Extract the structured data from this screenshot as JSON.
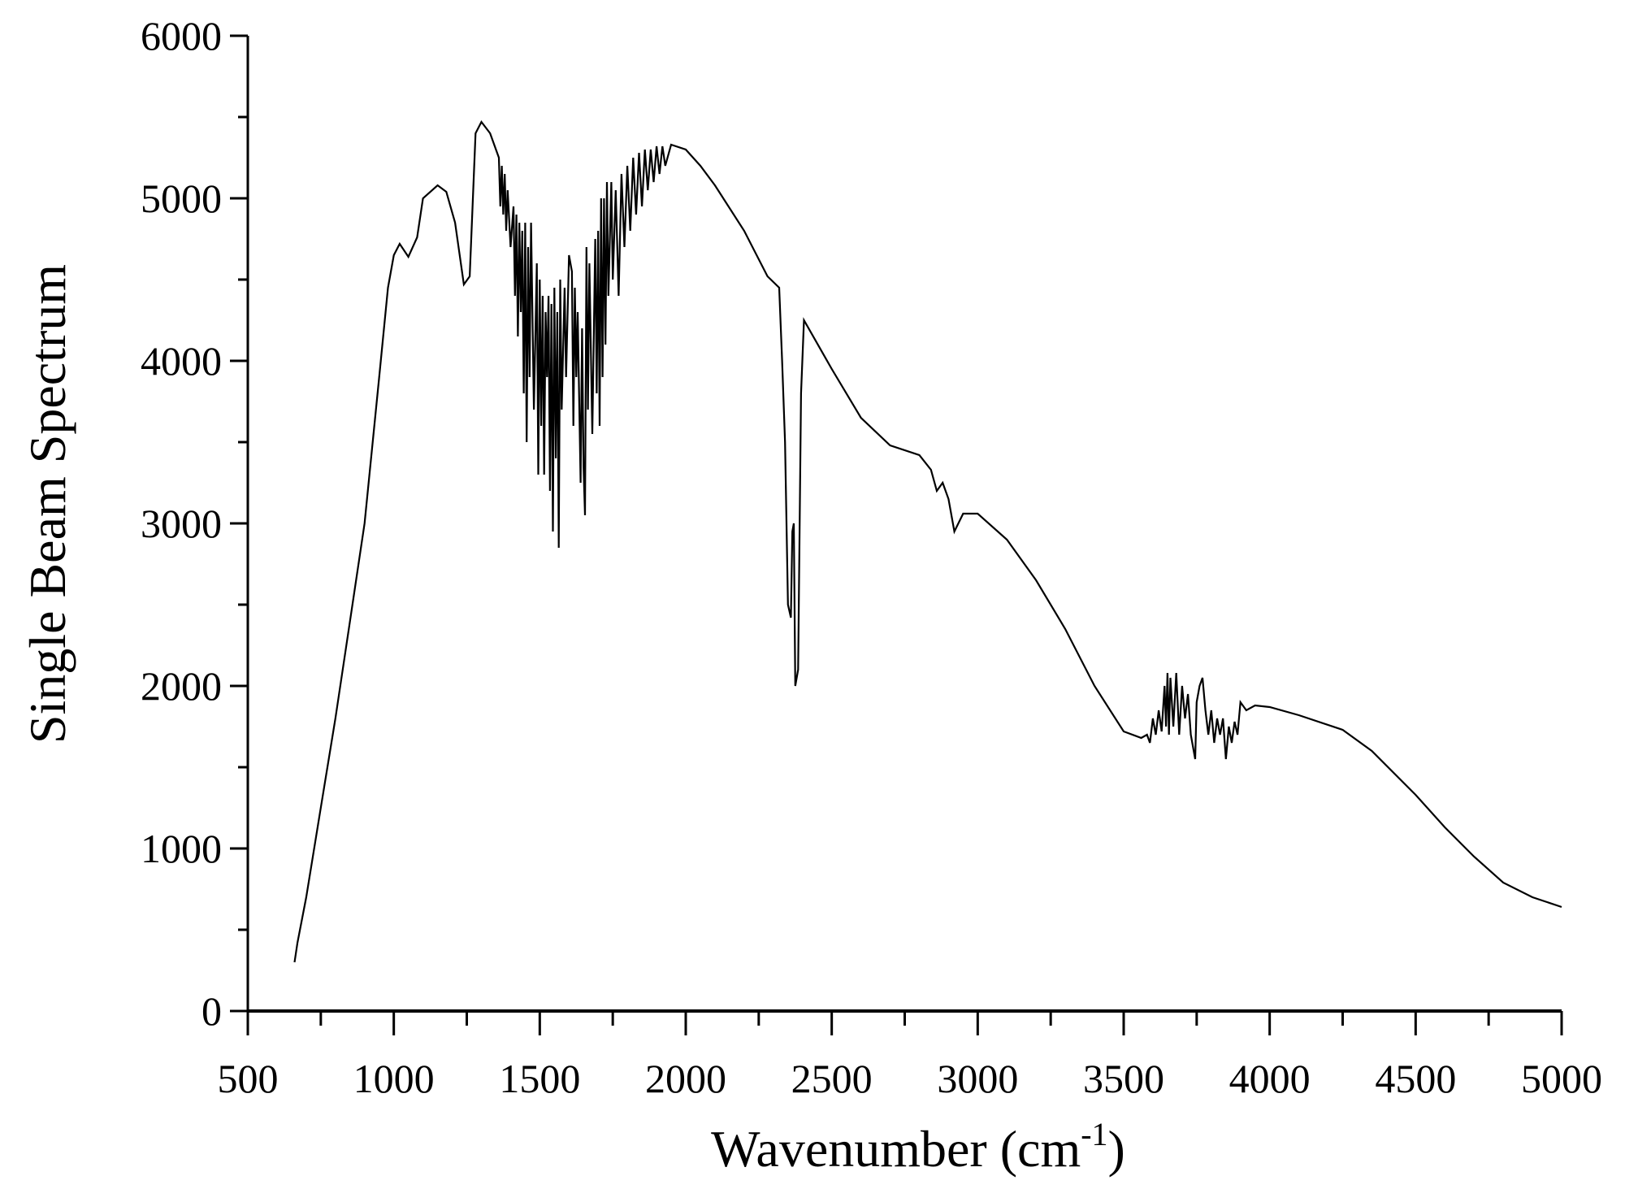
{
  "chart_data": {
    "type": "line",
    "title": "",
    "xlabel": "Wavenumber (cm",
    "xlabel_superscript": "-1",
    "xlabel_close": ")",
    "ylabel": "Single Beam Spectrum",
    "xlim": [
      500,
      5000
    ],
    "ylim": [
      0,
      6000
    ],
    "xticks": [
      500,
      1000,
      1500,
      2000,
      2500,
      3000,
      3500,
      4000,
      4500,
      5000
    ],
    "yticks": [
      0,
      1000,
      2000,
      3000,
      4000,
      5000,
      6000
    ],
    "x_minor_step": 250,
    "y_minor_step": 500,
    "grid": false,
    "line_color": "#000000",
    "series": [
      {
        "points": [
          [
            660,
            300
          ],
          [
            670,
            420
          ],
          [
            700,
            700
          ],
          [
            750,
            1250
          ],
          [
            800,
            1800
          ],
          [
            850,
            2400
          ],
          [
            900,
            3000
          ],
          [
            950,
            3900
          ],
          [
            980,
            4450
          ],
          [
            1000,
            4650
          ],
          [
            1020,
            4720
          ],
          [
            1050,
            4640
          ],
          [
            1080,
            4760
          ],
          [
            1100,
            5000
          ],
          [
            1150,
            5080
          ],
          [
            1180,
            5040
          ],
          [
            1210,
            4850
          ],
          [
            1240,
            4470
          ],
          [
            1260,
            4520
          ],
          [
            1280,
            5400
          ],
          [
            1300,
            5470
          ],
          [
            1330,
            5400
          ],
          [
            1350,
            5300
          ],
          [
            1360,
            5250
          ],
          [
            1365,
            4950
          ],
          [
            1370,
            5200
          ],
          [
            1375,
            4900
          ],
          [
            1380,
            5150
          ],
          [
            1385,
            4800
          ],
          [
            1390,
            5050
          ],
          [
            1400,
            4700
          ],
          [
            1410,
            4950
          ],
          [
            1415,
            4400
          ],
          [
            1420,
            4900
          ],
          [
            1425,
            4150
          ],
          [
            1430,
            4850
          ],
          [
            1435,
            4300
          ],
          [
            1440,
            4800
          ],
          [
            1445,
            3800
          ],
          [
            1450,
            4850
          ],
          [
            1455,
            3500
          ],
          [
            1460,
            4700
          ],
          [
            1465,
            3900
          ],
          [
            1470,
            4850
          ],
          [
            1480,
            3700
          ],
          [
            1490,
            4600
          ],
          [
            1495,
            3300
          ],
          [
            1500,
            4500
          ],
          [
            1505,
            3600
          ],
          [
            1510,
            4400
          ],
          [
            1515,
            3300
          ],
          [
            1520,
            4300
          ],
          [
            1525,
            3900
          ],
          [
            1530,
            4400
          ],
          [
            1535,
            3200
          ],
          [
            1540,
            4350
          ],
          [
            1545,
            2950
          ],
          [
            1550,
            4450
          ],
          [
            1555,
            3400
          ],
          [
            1560,
            4300
          ],
          [
            1565,
            2850
          ],
          [
            1570,
            4500
          ],
          [
            1575,
            3700
          ],
          [
            1585,
            4450
          ],
          [
            1590,
            3900
          ],
          [
            1600,
            4650
          ],
          [
            1610,
            4550
          ],
          [
            1615,
            3600
          ],
          [
            1620,
            4450
          ],
          [
            1625,
            3900
          ],
          [
            1630,
            4300
          ],
          [
            1640,
            3250
          ],
          [
            1645,
            4200
          ],
          [
            1650,
            3350
          ],
          [
            1655,
            3050
          ],
          [
            1660,
            4700
          ],
          [
            1665,
            3700
          ],
          [
            1670,
            4600
          ],
          [
            1680,
            3550
          ],
          [
            1690,
            4750
          ],
          [
            1695,
            3800
          ],
          [
            1700,
            4800
          ],
          [
            1705,
            3600
          ],
          [
            1710,
            5000
          ],
          [
            1715,
            3900
          ],
          [
            1720,
            5000
          ],
          [
            1725,
            4100
          ],
          [
            1730,
            5100
          ],
          [
            1735,
            4400
          ],
          [
            1745,
            5100
          ],
          [
            1750,
            4500
          ],
          [
            1760,
            5050
          ],
          [
            1770,
            4400
          ],
          [
            1780,
            5150
          ],
          [
            1790,
            4700
          ],
          [
            1800,
            5200
          ],
          [
            1810,
            4800
          ],
          [
            1820,
            5250
          ],
          [
            1830,
            4900
          ],
          [
            1840,
            5280
          ],
          [
            1850,
            4950
          ],
          [
            1860,
            5300
          ],
          [
            1870,
            5050
          ],
          [
            1880,
            5300
          ],
          [
            1890,
            5100
          ],
          [
            1900,
            5320
          ],
          [
            1910,
            5150
          ],
          [
            1920,
            5320
          ],
          [
            1930,
            5200
          ],
          [
            1950,
            5330
          ],
          [
            2000,
            5300
          ],
          [
            2050,
            5200
          ],
          [
            2100,
            5080
          ],
          [
            2200,
            4800
          ],
          [
            2280,
            4520
          ],
          [
            2320,
            4450
          ],
          [
            2330,
            4000
          ],
          [
            2340,
            3500
          ],
          [
            2350,
            2500
          ],
          [
            2360,
            2420
          ],
          [
            2365,
            2950
          ],
          [
            2370,
            3000
          ],
          [
            2375,
            2000
          ],
          [
            2385,
            2100
          ],
          [
            2395,
            3800
          ],
          [
            2405,
            4250
          ],
          [
            2500,
            3950
          ],
          [
            2600,
            3650
          ],
          [
            2700,
            3480
          ],
          [
            2800,
            3420
          ],
          [
            2840,
            3330
          ],
          [
            2860,
            3200
          ],
          [
            2880,
            3250
          ],
          [
            2900,
            3150
          ],
          [
            2920,
            2950
          ],
          [
            2950,
            3060
          ],
          [
            3000,
            3060
          ],
          [
            3100,
            2900
          ],
          [
            3200,
            2650
          ],
          [
            3300,
            2350
          ],
          [
            3400,
            2000
          ],
          [
            3500,
            1720
          ],
          [
            3560,
            1680
          ],
          [
            3580,
            1700
          ],
          [
            3590,
            1650
          ],
          [
            3600,
            1800
          ],
          [
            3610,
            1700
          ],
          [
            3620,
            1850
          ],
          [
            3630,
            1720
          ],
          [
            3640,
            2000
          ],
          [
            3645,
            1750
          ],
          [
            3650,
            2080
          ],
          [
            3655,
            1700
          ],
          [
            3660,
            2050
          ],
          [
            3670,
            1750
          ],
          [
            3680,
            2080
          ],
          [
            3690,
            1700
          ],
          [
            3700,
            2000
          ],
          [
            3710,
            1800
          ],
          [
            3720,
            1950
          ],
          [
            3730,
            1700
          ],
          [
            3740,
            1600
          ],
          [
            3745,
            1550
          ],
          [
            3750,
            1900
          ],
          [
            3760,
            2000
          ],
          [
            3770,
            2050
          ],
          [
            3780,
            1850
          ],
          [
            3790,
            1700
          ],
          [
            3800,
            1850
          ],
          [
            3810,
            1650
          ],
          [
            3820,
            1800
          ],
          [
            3830,
            1700
          ],
          [
            3840,
            1800
          ],
          [
            3850,
            1550
          ],
          [
            3860,
            1750
          ],
          [
            3870,
            1650
          ],
          [
            3880,
            1780
          ],
          [
            3890,
            1700
          ],
          [
            3900,
            1900
          ],
          [
            3920,
            1850
          ],
          [
            3950,
            1880
          ],
          [
            4000,
            1870
          ],
          [
            4100,
            1820
          ],
          [
            4250,
            1730
          ],
          [
            4350,
            1600
          ],
          [
            4500,
            1330
          ],
          [
            4600,
            1130
          ],
          [
            4700,
            950
          ],
          [
            4800,
            790
          ],
          [
            4900,
            700
          ],
          [
            5000,
            640
          ]
        ]
      }
    ]
  }
}
